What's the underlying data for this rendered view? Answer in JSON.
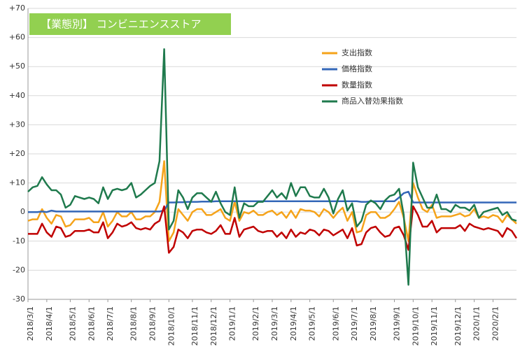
{
  "chart_data": {
    "type": "line",
    "title": "【業態別】 コンビニエンスストア",
    "categories": [
      "2018/3/1",
      null,
      null,
      null,
      "2018/4/1",
      null,
      null,
      null,
      null,
      "2018/5/1",
      null,
      null,
      null,
      "2018/6/1",
      null,
      null,
      null,
      "2018/7/1",
      null,
      null,
      null,
      null,
      "2018/8/1",
      null,
      null,
      null,
      "2018/9/1",
      null,
      null,
      null,
      "2018/10/1",
      null,
      null,
      null,
      null,
      "2018/11/1",
      null,
      null,
      null,
      "2018/12/1",
      null,
      null,
      null,
      "2019/1/1",
      null,
      null,
      null,
      null,
      "2019/2/1",
      null,
      null,
      null,
      "2019/3/1",
      null,
      null,
      null,
      "2019/4/1",
      null,
      null,
      null,
      "2019/5/1",
      null,
      null,
      null,
      null,
      "2019/6/1",
      null,
      null,
      null,
      "2019/7/1",
      null,
      null,
      null,
      "2019/8/1",
      null,
      null,
      null,
      null,
      "2019/9/1",
      null,
      null,
      null,
      "2019/10/1",
      null,
      null,
      null,
      "2019/11/1",
      null,
      null,
      null,
      null,
      "2019/12/1",
      null,
      null,
      null,
      "2020/1/1",
      null,
      null,
      null,
      "2020/2/1",
      null,
      null,
      null,
      null,
      null
    ],
    "series": [
      {
        "name": "支出指数",
        "color": "#f5a31a",
        "values": [
          -3,
          -2.5,
          -2.5,
          1,
          -2,
          -4,
          -1,
          -1.5,
          -5,
          -4.5,
          -2.5,
          -2.5,
          -2.5,
          -2,
          -3.5,
          -3.5,
          0,
          -5,
          -3,
          0,
          -1.5,
          -1.5,
          0,
          -2.5,
          -2.5,
          -1.5,
          -1.5,
          0,
          3.5,
          17.5,
          -10,
          -7,
          1,
          -1,
          -3,
          0,
          1,
          1,
          -1,
          -1,
          0,
          1,
          -2,
          -3,
          3.5,
          -3,
          0,
          -0.5,
          0.5,
          -1,
          -1,
          0,
          0.5,
          -1,
          0,
          -2,
          0.5,
          -2,
          1,
          0.5,
          0.5,
          0,
          -1.5,
          1,
          0,
          -2,
          0,
          1.5,
          -3,
          0,
          -7,
          -6.5,
          -1,
          0,
          0,
          -2,
          -2,
          -1,
          1,
          3.5,
          -2,
          -10,
          10,
          5,
          1,
          0,
          2.5,
          -2,
          -1.5,
          -1.5,
          -1.5,
          -1,
          -0.5,
          -1.5,
          -1,
          1,
          -2,
          -1.5,
          -2,
          -1,
          -1.5,
          -3.5,
          -1,
          -2.5,
          -4
        ]
      },
      {
        "name": "価格指数",
        "color": "#3467b8",
        "values": [
          0,
          0,
          0,
          0.2,
          0,
          0.5,
          0.2,
          0.2,
          0.2,
          0.2,
          0.2,
          0.2,
          0.2,
          0.2,
          0.2,
          0.2,
          0.2,
          0.2,
          0.2,
          0.2,
          0.2,
          0.2,
          0.2,
          0.2,
          0.2,
          0.2,
          0.2,
          0.2,
          0.2,
          0.5,
          3.3,
          3.3,
          3.4,
          3.4,
          3.5,
          3.5,
          3.5,
          3.6,
          3.6,
          3.6,
          3.7,
          3.7,
          3.7,
          3.7,
          3.7,
          3.7,
          3.7,
          3.7,
          3.7,
          3.7,
          3.7,
          3.7,
          3.7,
          3.7,
          3.7,
          3.7,
          3.7,
          3.7,
          3.7,
          3.7,
          3.7,
          3.7,
          3.7,
          3.7,
          3.7,
          3.7,
          3.7,
          3.7,
          3.7,
          3.7,
          3.7,
          3.5,
          3.5,
          3.7,
          3.7,
          3.7,
          3.7,
          3.7,
          3.7,
          5,
          6.5,
          7,
          3.3,
          3.3,
          3.3,
          3.3,
          3.3,
          3.3,
          3.3,
          3.3,
          3.3,
          3.3,
          3.3,
          3.3,
          3.3,
          3.3,
          3.3,
          3.3,
          3.3,
          3.3,
          3.3,
          3.3,
          3.3,
          3.3,
          3.3
        ]
      },
      {
        "name": "数量指数",
        "color": "#c00000",
        "values": [
          -7.5,
          -7.5,
          -7.5,
          -4,
          -7,
          -8.5,
          -5,
          -5.5,
          -8.5,
          -8,
          -6.5,
          -6.5,
          -6.5,
          -6,
          -7,
          -7,
          -3.5,
          -9,
          -7,
          -4,
          -5,
          -4.5,
          -3.5,
          -5.5,
          -6,
          -5.5,
          -6,
          -4,
          -3,
          2,
          -14,
          -12,
          -6,
          -7,
          -9,
          -6.5,
          -6,
          -6,
          -7,
          -7.5,
          -6.5,
          -4.5,
          -7.5,
          -7.5,
          -2,
          -8.5,
          -6,
          -5.5,
          -5,
          -6.5,
          -7,
          -6.5,
          -6.5,
          -8.5,
          -7,
          -9,
          -6,
          -8.5,
          -7,
          -7.5,
          -6,
          -6.5,
          -8,
          -6,
          -6.5,
          -8,
          -7,
          -6,
          -9,
          -5.5,
          -11.5,
          -11,
          -7,
          -5.5,
          -5,
          -7,
          -8.5,
          -8,
          -5.5,
          -5,
          -8,
          -13,
          2,
          -1,
          -5,
          -5,
          -3,
          -7,
          -5.5,
          -5.5,
          -5.5,
          -5.5,
          -4.5,
          -6.5,
          -4,
          -5,
          -5.5,
          -6,
          -5.5,
          -6,
          -6.5,
          -8.5,
          -5.5,
          -6.5,
          -9
        ]
      },
      {
        "name": "商品入替効果指数",
        "color": "#1f7a4d",
        "values": [
          7,
          8.5,
          9,
          12,
          9.5,
          7.5,
          7.5,
          6,
          1.5,
          2.5,
          5.5,
          5,
          4.5,
          5,
          4.5,
          3,
          8.5,
          4.5,
          7.5,
          8,
          7.5,
          8,
          10,
          5,
          6,
          7.5,
          9,
          10,
          17.5,
          56,
          -6,
          -3,
          7.5,
          5,
          1,
          5,
          6.5,
          6.5,
          5,
          3.5,
          7,
          3,
          0,
          -1,
          8.5,
          -2,
          3,
          2,
          2,
          3.5,
          3.5,
          5.5,
          7.5,
          5,
          6.5,
          4.5,
          10,
          5.5,
          8.5,
          8.5,
          5.5,
          5,
          5,
          8,
          5,
          -0.5,
          4.5,
          7.5,
          0.5,
          3,
          -5,
          -3,
          2.5,
          4,
          3,
          1,
          4,
          5.5,
          6,
          8,
          -1,
          -25,
          17,
          8.5,
          5,
          1.5,
          1.5,
          6,
          1,
          1,
          0,
          2.5,
          1.5,
          1.5,
          0.5,
          2.5,
          -2,
          0,
          0.5,
          1,
          1.5,
          -1,
          0,
          -2.5,
          -3
        ]
      }
    ],
    "ylim": [
      -30,
      70
    ],
    "yticks": [
      -30,
      -20,
      -10,
      0,
      {
        "value": 10,
        "label": "+10"
      },
      {
        "value": 20,
        "label": "+20"
      },
      {
        "value": 30,
        "label": "+30"
      },
      {
        "value": 40,
        "label": "+40"
      },
      {
        "value": 50,
        "label": "+50"
      },
      {
        "value": 60,
        "label": "+60"
      },
      {
        "value": 70,
        "label": "+70"
      }
    ],
    "grid": true,
    "legend": "upper right"
  }
}
